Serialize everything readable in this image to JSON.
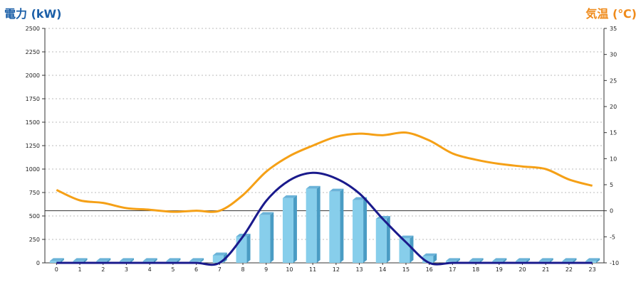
{
  "chart_data": {
    "type": "bar",
    "ylabel": "電力 (kW)",
    "y2label": "気温 (℃)",
    "categories": [
      "0",
      "1",
      "2",
      "3",
      "4",
      "5",
      "6",
      "7",
      "8",
      "9",
      "10",
      "11",
      "12",
      "13",
      "14",
      "15",
      "16",
      "17",
      "18",
      "19",
      "20",
      "21",
      "22",
      "23"
    ],
    "ylim": [
      0,
      2500
    ],
    "y_ticks": [
      "0",
      "250",
      "500",
      "750",
      "1000",
      "1250",
      "1500",
      "1750",
      "2000",
      "2250",
      "2500"
    ],
    "y2lim": [
      -10,
      35
    ],
    "y2_ticks": [
      "-10",
      "-5",
      "0",
      "5",
      "10",
      "15",
      "20",
      "25",
      "30",
      "35"
    ],
    "grid": true,
    "series": [
      {
        "kind": "bar",
        "axis": "left",
        "values": [
          20,
          20,
          20,
          20,
          20,
          20,
          20,
          80,
          280,
          510,
          690,
          790,
          760,
          670,
          470,
          260,
          70,
          20,
          20,
          20,
          20,
          20,
          20,
          20
        ]
      },
      {
        "kind": "line",
        "axis": "left",
        "values": [
          0,
          0,
          0,
          0,
          0,
          0,
          0,
          0,
          280,
          660,
          880,
          960,
          900,
          740,
          470,
          220,
          0,
          0,
          0,
          0,
          0,
          0,
          0,
          0
        ]
      },
      {
        "kind": "line",
        "axis": "right",
        "values": [
          4,
          2,
          1.5,
          0.5,
          0.2,
          -0.2,
          0,
          0,
          3,
          7.5,
          10.5,
          12.5,
          14.2,
          14.8,
          14.5,
          15,
          13.5,
          11,
          9.8,
          9,
          8.5,
          8,
          6,
          4.8
        ]
      }
    ],
    "colors": {
      "bars": "#87ceeb",
      "bars_side": "#4a9cc4",
      "bars_top": "#6bb3d8",
      "power_line": "#1a1a8c",
      "temp_line": "#f5a016",
      "left_title": "#1b5fa8",
      "right_title": "#ef8a1a"
    }
  }
}
